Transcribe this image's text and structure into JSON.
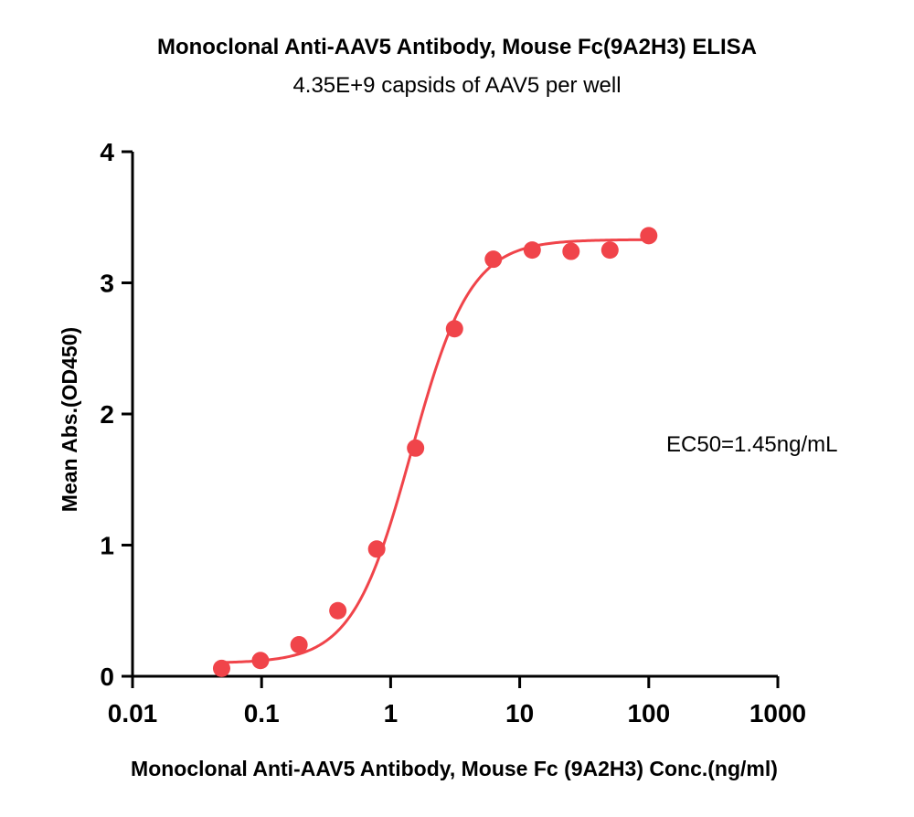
{
  "chart_data": {
    "type": "scatter",
    "title": "Monoclonal Anti-AAV5 Antibody, Mouse Fc(9A2H3) ELISA",
    "subtitle": "4.35E+9 capsids of AAV5 per well",
    "xlabel": "Monoclonal Anti-AAV5 Antibody, Mouse Fc (9A2H3) Conc.(ng/ml)",
    "ylabel": "Mean Abs.(OD450)",
    "x_scale": "log",
    "xlim": [
      0.01,
      1000
    ],
    "ylim": [
      0,
      4
    ],
    "x_ticks": [
      "0.01",
      "0.1",
      "1",
      "10",
      "100",
      "1000"
    ],
    "y_ticks": [
      "0",
      "1",
      "2",
      "3",
      "4"
    ],
    "grid": false,
    "color": "#f0444a",
    "annotation": "EC50=1.45ng/mL",
    "series": [
      {
        "x": [
          0.049,
          0.098,
          0.195,
          0.39,
          0.78,
          1.56,
          3.125,
          6.25,
          12.5,
          25,
          50,
          100
        ],
        "y": [
          0.06,
          0.12,
          0.24,
          0.5,
          0.97,
          1.74,
          2.65,
          3.18,
          3.25,
          3.24,
          3.25,
          3.36
        ]
      }
    ],
    "fit_curve": {
      "model": "4PL",
      "bottom": 0.1,
      "top": 3.33,
      "ec50": 1.45,
      "hill": 1.9,
      "x_range": [
        0.049,
        100
      ]
    }
  }
}
